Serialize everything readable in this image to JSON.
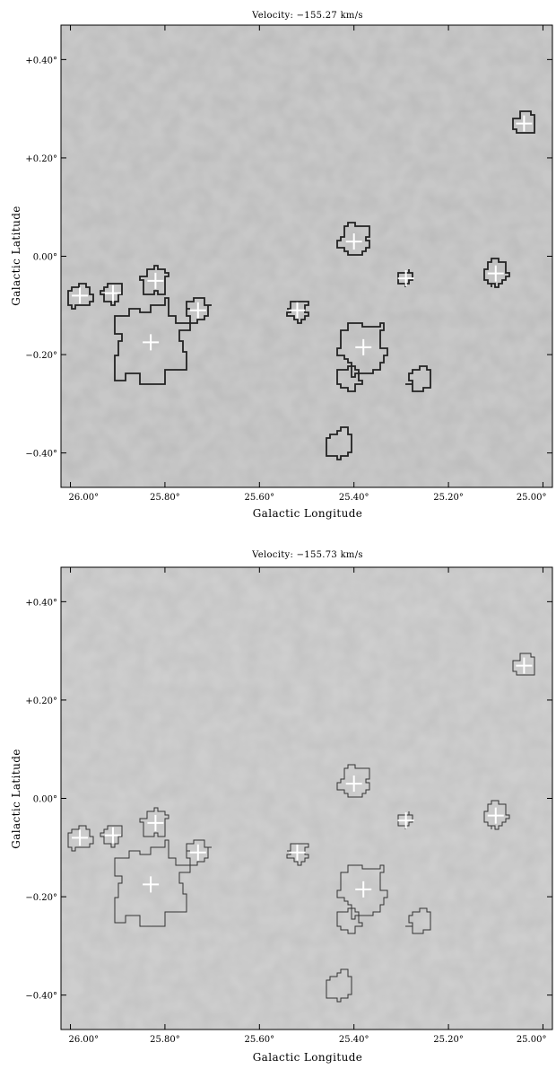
{
  "chart_data": [
    {
      "type": "contour",
      "title": "Velocity: −155.27 km/s",
      "xlabel": "Galactic Longitude",
      "ylabel": "Galactic Latitude",
      "xlim": [
        26.02,
        24.98
      ],
      "ylim": [
        -0.47,
        0.47
      ],
      "x_ticks": [
        26.0,
        25.8,
        25.6,
        25.4,
        25.2,
        25.0
      ],
      "x_tick_labels": [
        "26.00°",
        "25.80°",
        "25.60°",
        "25.40°",
        "25.20°",
        "25.00°"
      ],
      "y_ticks": [
        0.4,
        0.2,
        0.0,
        -0.2,
        -0.4
      ],
      "y_tick_labels": [
        "+0.40°",
        "+0.20°",
        "0.00°",
        "−0.20°",
        "−0.40°"
      ],
      "background": "grayscale noise map",
      "contour_style": "thick dark outline",
      "contour_color": "#222222",
      "marker_color": "#ffffff",
      "sources": [
        {
          "l": 25.98,
          "b": -0.08,
          "r": 0.025
        },
        {
          "l": 25.91,
          "b": -0.075,
          "r": 0.022
        },
        {
          "l": 25.82,
          "b": -0.05,
          "r": 0.027
        },
        {
          "l": 25.83,
          "b": -0.175,
          "r": 0.08
        },
        {
          "l": 25.73,
          "b": -0.11,
          "r": 0.025
        },
        {
          "l": 25.52,
          "b": -0.11,
          "r": 0.022
        },
        {
          "l": 25.4,
          "b": 0.03,
          "r": 0.032
        },
        {
          "l": 25.38,
          "b": -0.185,
          "r": 0.05
        },
        {
          "l": 25.29,
          "b": -0.045,
          "r": 0.015
        },
        {
          "l": 25.1,
          "b": -0.035,
          "r": 0.025
        },
        {
          "l": 25.04,
          "b": 0.27,
          "r": 0.024
        }
      ],
      "extra_contours": [
        {
          "l": 25.41,
          "b": -0.25,
          "r": 0.025
        },
        {
          "l": 25.26,
          "b": -0.25,
          "r": 0.025
        },
        {
          "l": 25.43,
          "b": -0.38,
          "r": 0.03
        }
      ]
    },
    {
      "type": "contour",
      "title": "Velocity: −155.73 km/s",
      "xlabel": "Galactic Longitude",
      "ylabel": "Galactic Latitude",
      "xlim": [
        26.02,
        24.98
      ],
      "ylim": [
        -0.47,
        0.47
      ],
      "x_ticks": [
        26.0,
        25.8,
        25.6,
        25.4,
        25.2,
        25.0
      ],
      "x_tick_labels": [
        "26.00°",
        "25.80°",
        "25.60°",
        "25.40°",
        "25.20°",
        "25.00°"
      ],
      "y_ticks": [
        0.4,
        0.2,
        0.0,
        -0.2,
        -0.4
      ],
      "y_tick_labels": [
        "+0.40°",
        "+0.20°",
        "0.00°",
        "−0.20°",
        "−0.40°"
      ],
      "background": "grayscale noise map",
      "contour_style": "thin dark outline",
      "contour_color": "#333333",
      "marker_color": "#ffffff",
      "sources": [
        {
          "l": 25.98,
          "b": -0.08,
          "r": 0.025
        },
        {
          "l": 25.91,
          "b": -0.075,
          "r": 0.022
        },
        {
          "l": 25.82,
          "b": -0.05,
          "r": 0.027
        },
        {
          "l": 25.83,
          "b": -0.175,
          "r": 0.08
        },
        {
          "l": 25.73,
          "b": -0.11,
          "r": 0.025
        },
        {
          "l": 25.52,
          "b": -0.11,
          "r": 0.022
        },
        {
          "l": 25.4,
          "b": 0.03,
          "r": 0.032
        },
        {
          "l": 25.38,
          "b": -0.185,
          "r": 0.05
        },
        {
          "l": 25.29,
          "b": -0.045,
          "r": 0.015
        },
        {
          "l": 25.1,
          "b": -0.035,
          "r": 0.025
        },
        {
          "l": 25.04,
          "b": 0.27,
          "r": 0.024
        }
      ],
      "extra_contours": [
        {
          "l": 25.41,
          "b": -0.25,
          "r": 0.025
        },
        {
          "l": 25.26,
          "b": -0.25,
          "r": 0.025
        },
        {
          "l": 25.43,
          "b": -0.38,
          "r": 0.03
        }
      ]
    }
  ]
}
